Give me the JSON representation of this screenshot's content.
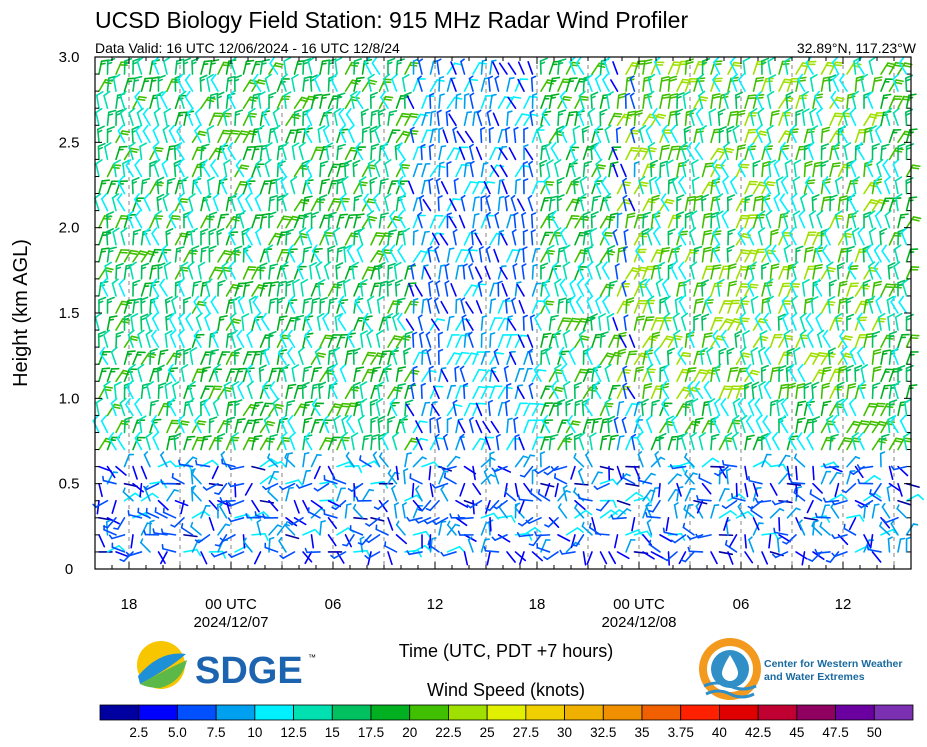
{
  "chart_data": {
    "type": "wind-barb-profile",
    "title": "UCSD Biology Field Station: 915 MHz Radar Wind Profiler",
    "subtitle_left": "Data Valid: 16 UTC 12/06/2024 - 16 UTC 12/8/24",
    "subtitle_right": "32.89°N, 117.23°W",
    "ylabel": "Height (km AGL)",
    "xlabel": "Time (UTC, PDT +7 hours)",
    "ylim": [
      0,
      3.0
    ],
    "yticks": [
      "0",
      "0.5",
      "1.0",
      "1.5",
      "2.0",
      "2.5",
      "3.0"
    ],
    "x_range_hours": [
      0,
      48
    ],
    "xticks": [
      {
        "hour": 2,
        "label": "18",
        "sub": ""
      },
      {
        "hour": 8,
        "label": "00 UTC",
        "sub": "2024/12/07"
      },
      {
        "hour": 14,
        "label": "06",
        "sub": ""
      },
      {
        "hour": 20,
        "label": "12",
        "sub": ""
      },
      {
        "hour": 26,
        "label": "18",
        "sub": ""
      },
      {
        "hour": 32,
        "label": "00 UTC",
        "sub": "2024/12/08"
      },
      {
        "hour": 38,
        "label": "06",
        "sub": ""
      },
      {
        "hour": 44,
        "label": "12",
        "sub": ""
      }
    ],
    "legend_title": "Wind Speed (knots)",
    "speed_labels": [
      "2.5",
      "5.0",
      "7.5",
      "10",
      "12.5",
      "15",
      "17.5",
      "20",
      "22.5",
      "25",
      "27.5",
      "30",
      "32.5",
      "35",
      "3.75",
      "40",
      "42.5",
      "45",
      "47.5",
      "50"
    ],
    "colors": [
      "#0000a0",
      "#0000ff",
      "#0050ff",
      "#00a0f0",
      "#00f0ff",
      "#00e0b0",
      "#00c060",
      "#00b020",
      "#40c000",
      "#a0e000",
      "#e0f000",
      "#f0d000",
      "#f0b000",
      "#f09000",
      "#f06000",
      "#ff2000",
      "#e00000",
      "#c00030",
      "#900060",
      "#6a00a0",
      "#7a30b0"
    ],
    "series": [
      {
        "column_hours": [
          0,
          0.5,
          1,
          1.5,
          2,
          2.5,
          3,
          3.5,
          4,
          4.5,
          5,
          5.5,
          6,
          6.5,
          7,
          7.5,
          8,
          8.5,
          9,
          9.5,
          10,
          10.5,
          11,
          11.5,
          12,
          12.5,
          13,
          13.5,
          14,
          14.5,
          15,
          15.5,
          16,
          16.5,
          17,
          17.5,
          18,
          18.5,
          19,
          19.5,
          20,
          20.5,
          21,
          21.5,
          22,
          22.5,
          23,
          23.5,
          24,
          24.5,
          25,
          25.5,
          26,
          26.5,
          27,
          27.5,
          28,
          28.5,
          29,
          29.5,
          30,
          30.5,
          31,
          31.5,
          32,
          32.5,
          33,
          33.5,
          34,
          34.5,
          35,
          35.5,
          36,
          36.5,
          37,
          37.5,
          38,
          38.5,
          39,
          39.5,
          40,
          40.5,
          41,
          41.5,
          42,
          42.5,
          43,
          43.5,
          44,
          44.5,
          45,
          45.5,
          46,
          46.5,
          47,
          47.5
        ],
        "levels_km": [
          0.1,
          0.2,
          0.3,
          0.4,
          0.5,
          0.6,
          0.7,
          0.8,
          0.9,
          1.0,
          1.1,
          1.2,
          1.3,
          1.4,
          1.5,
          1.6,
          1.7,
          1.8,
          1.9,
          2.0,
          2.1,
          2.2,
          2.3,
          2.4,
          2.5,
          2.6,
          2.7,
          2.8,
          2.9
        ]
      }
    ]
  },
  "logos": {
    "sdge": "SDGE",
    "sdge_tm": "™",
    "cw3e_line1": "Center for Western Weather",
    "cw3e_line2": "and Water Extremes"
  }
}
